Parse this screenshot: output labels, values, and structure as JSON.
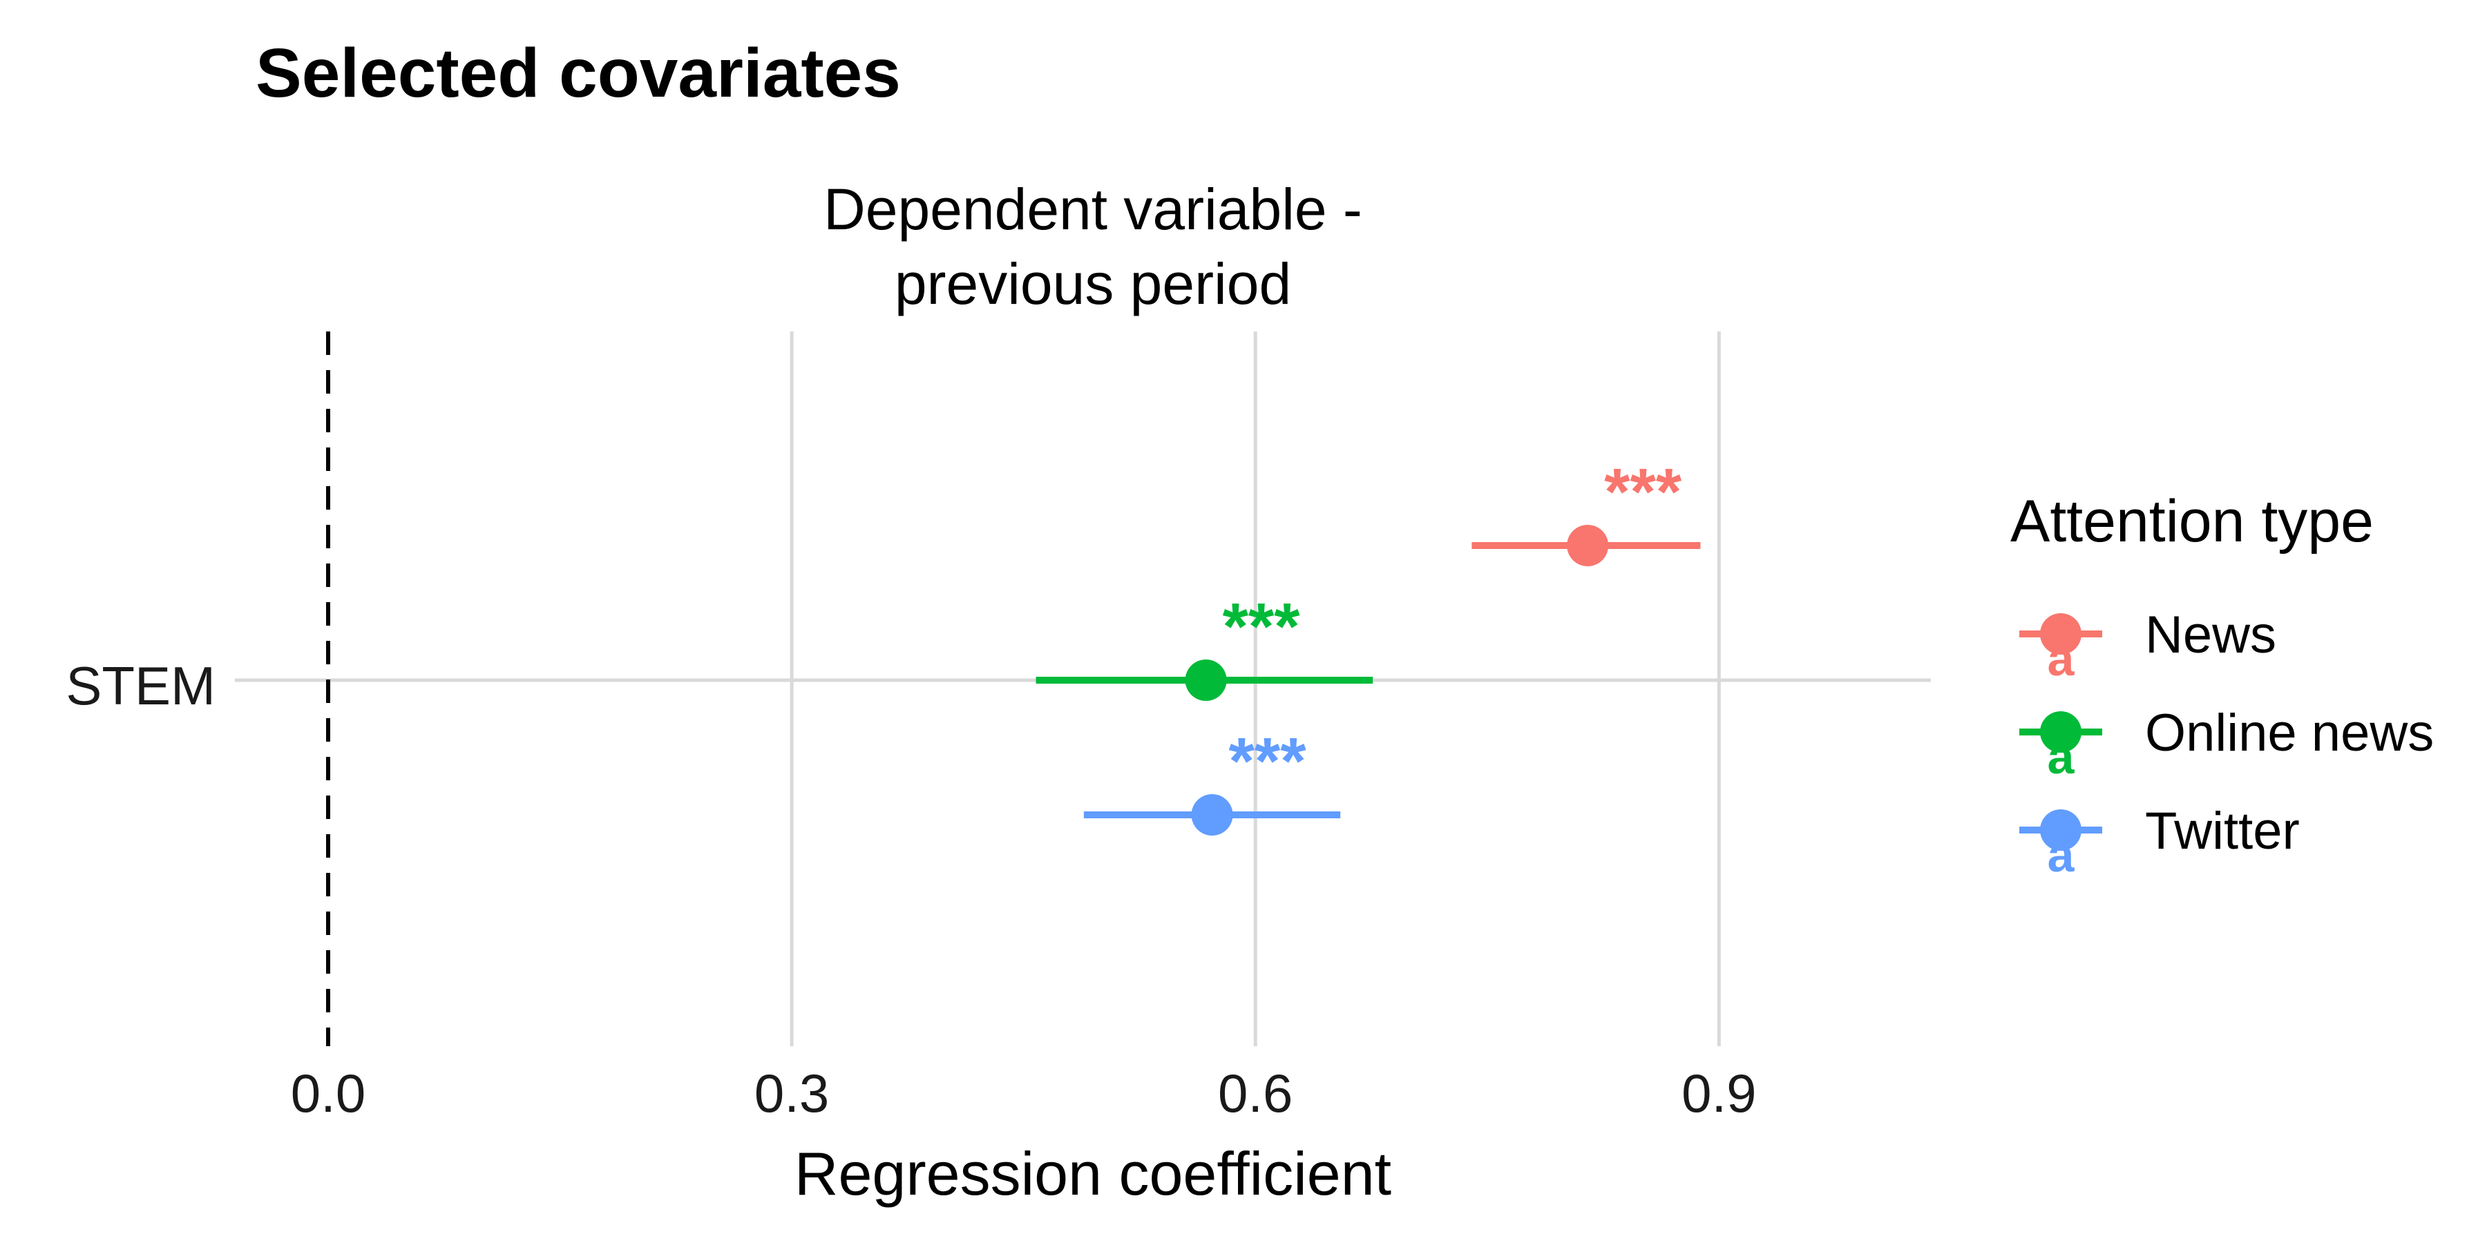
{
  "chart_data": {
    "type": "scatter",
    "title": "Selected covariates",
    "facet_label_lines": [
      "Dependent variable -",
      "previous period"
    ],
    "xlabel": "Regression coefficient",
    "ylabel": "",
    "xlim": [
      0.0,
      0.93
    ],
    "x_ticks": [
      0.0,
      0.3,
      0.6,
      0.9
    ],
    "x_tick_labels": [
      "0.0",
      "0.3",
      "0.6",
      "0.9"
    ],
    "categories": [
      "STEM"
    ],
    "reference_line": 0.0,
    "grid": true,
    "legend": {
      "title": "Attention type",
      "placement": "right"
    },
    "series": [
      {
        "name": "News",
        "color": "#F8766D",
        "estimate": 0.815,
        "ci_low": 0.74,
        "ci_high": 0.888,
        "significance": "***"
      },
      {
        "name": "Online news",
        "color": "#00BA38",
        "estimate": 0.568,
        "ci_low": 0.458,
        "ci_high": 0.676,
        "significance": "***"
      },
      {
        "name": "Twitter",
        "color": "#619CFF",
        "estimate": 0.572,
        "ci_low": 0.489,
        "ci_high": 0.655,
        "significance": "***"
      }
    ]
  }
}
